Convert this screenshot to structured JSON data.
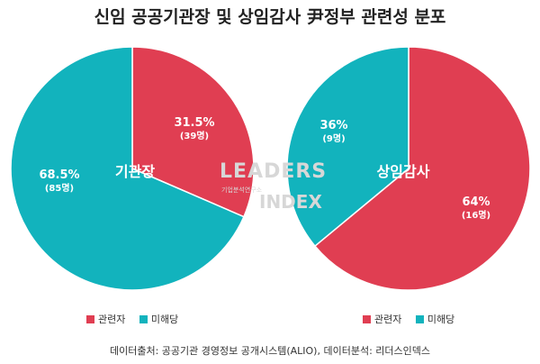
{
  "title": "신임 공공기관장 및 상임감사 尹정부 관련성 분포",
  "colors": {
    "related": "#e03e52",
    "unrelated": "#12b3bd"
  },
  "chart_data": [
    {
      "type": "pie",
      "name": "기관장",
      "slices": [
        {
          "label": "관련자",
          "percent": 31.5,
          "count_label": "(39명)",
          "percent_label": "31.5%"
        },
        {
          "label": "미해당",
          "percent": 68.5,
          "count_label": "(85명)",
          "percent_label": "68.5%"
        }
      ],
      "legend": [
        "관련자",
        "미해당"
      ]
    },
    {
      "type": "pie",
      "name": "상임감사",
      "slices": [
        {
          "label": "관련자",
          "percent": 64,
          "count_label": "(16명)",
          "percent_label": "64%"
        },
        {
          "label": "미해당",
          "percent": 36,
          "count_label": "(9명)",
          "percent_label": "36%"
        }
      ],
      "legend": [
        "관련자",
        "미해당"
      ]
    }
  ],
  "watermark": {
    "line1": "LEADERS",
    "sub": "기업분석연구소",
    "line2": "INDEX"
  },
  "footer": "데이터출처: 공공기관 경영정보 공개시스템(ALIO), 데이터분석: 리더스인덱스"
}
